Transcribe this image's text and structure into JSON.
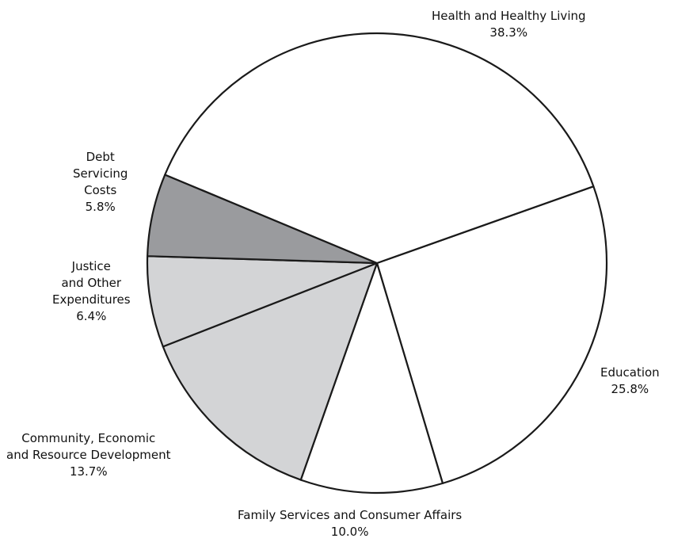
{
  "chart_data": {
    "type": "pie",
    "start_angle_deg": -19.5,
    "direction": "clockwise",
    "slices": [
      {
        "label": "Education",
        "display_label": "Education",
        "value": 25.8,
        "value_label": "25.8%",
        "color": "#ffffff"
      },
      {
        "label": "Family Services and Consumer Affairs",
        "display_label": "Family Services and Consumer Affairs",
        "value": 10.0,
        "value_label": "10.0%",
        "color": "#ffffff"
      },
      {
        "label": "Community, Economic and Resource Development",
        "display_label": "Community, Economic\nand Resource Development",
        "value": 13.7,
        "value_label": "13.7%",
        "color": "#d3d4d6"
      },
      {
        "label": "Justice and Other Expenditures",
        "display_label": "Justice\nand Other\nExpenditures",
        "value": 6.4,
        "value_label": "6.4%",
        "color": "#d3d4d6"
      },
      {
        "label": "Debt Servicing Costs",
        "display_label": "Debt\nServicing\nCosts",
        "value": 5.8,
        "value_label": "5.8%",
        "color": "#9a9b9e"
      },
      {
        "label": "Health and Healthy Living",
        "display_label": "Health and Healthy Living",
        "value": 38.3,
        "value_label": "38.3%",
        "color": "#ffffff"
      }
    ]
  }
}
